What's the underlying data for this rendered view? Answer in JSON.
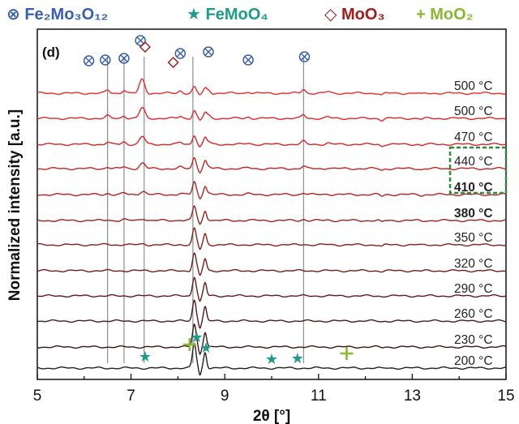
{
  "chart_data": {
    "type": "line",
    "panel_label": "(d)",
    "xlabel": "2θ  [°]",
    "ylabel": "Normalized intensity [a.u.]",
    "xlim": [
      5,
      15
    ],
    "x_ticks": [
      5,
      7,
      9,
      11,
      13,
      15
    ],
    "legend": {
      "placement": "top",
      "entries": [
        {
          "symbol": "⊗",
          "name": "Fe₂Mo₃O₁₂",
          "color": "#3a5fb0"
        },
        {
          "symbol": "★",
          "name": "FeMoO₄",
          "color": "#1e9c8a"
        },
        {
          "symbol": "◇",
          "name": "MoO₃",
          "color": "#a01e1e"
        },
        {
          "symbol": "+",
          "name": "MoO₂",
          "color": "#8ab833"
        }
      ]
    },
    "series": [
      {
        "name": "200 °C",
        "color": "#222222",
        "bold": false
      },
      {
        "name": "230 °C",
        "color": "#3a1818",
        "bold": false
      },
      {
        "name": "260 °C",
        "color": "#4e1a1a",
        "bold": false
      },
      {
        "name": "290 °C",
        "color": "#621c1c",
        "bold": false
      },
      {
        "name": "320 °C",
        "color": "#761d1d",
        "bold": false
      },
      {
        "name": "350 °C",
        "color": "#8a1f1f",
        "bold": false
      },
      {
        "name": "380 °C",
        "color": "#9e2121",
        "bold": true
      },
      {
        "name": "410 °C",
        "color": "#b42222",
        "bold": true
      },
      {
        "name": "440 °C",
        "color": "#c42424",
        "bold": false
      },
      {
        "name": "470 °C",
        "color": "#d42626",
        "bold": false
      },
      {
        "name": "500 °C",
        "color": "#e02828",
        "bold": false
      },
      {
        "name": "500 °C",
        "color": "#ee2a2a",
        "bold": false
      }
    ],
    "reference_lines_x": [
      6.5,
      6.85,
      7.28,
      8.32,
      10.68
    ],
    "markers": {
      "Fe2Mo3O12": [
        6.1,
        6.45,
        6.85,
        7.2,
        8.05,
        8.65,
        9.5,
        10.7
      ],
      "FeMoO4": [
        7.3,
        8.4,
        8.6,
        10.0,
        10.55
      ],
      "MoO3": [
        7.3,
        7.9
      ],
      "MoO2": [
        8.25,
        11.6
      ]
    },
    "highlight_box": {
      "series": [
        "410 °C",
        "380 °C"
      ],
      "color": "#2e8b3e",
      "style": "dashed"
    }
  }
}
